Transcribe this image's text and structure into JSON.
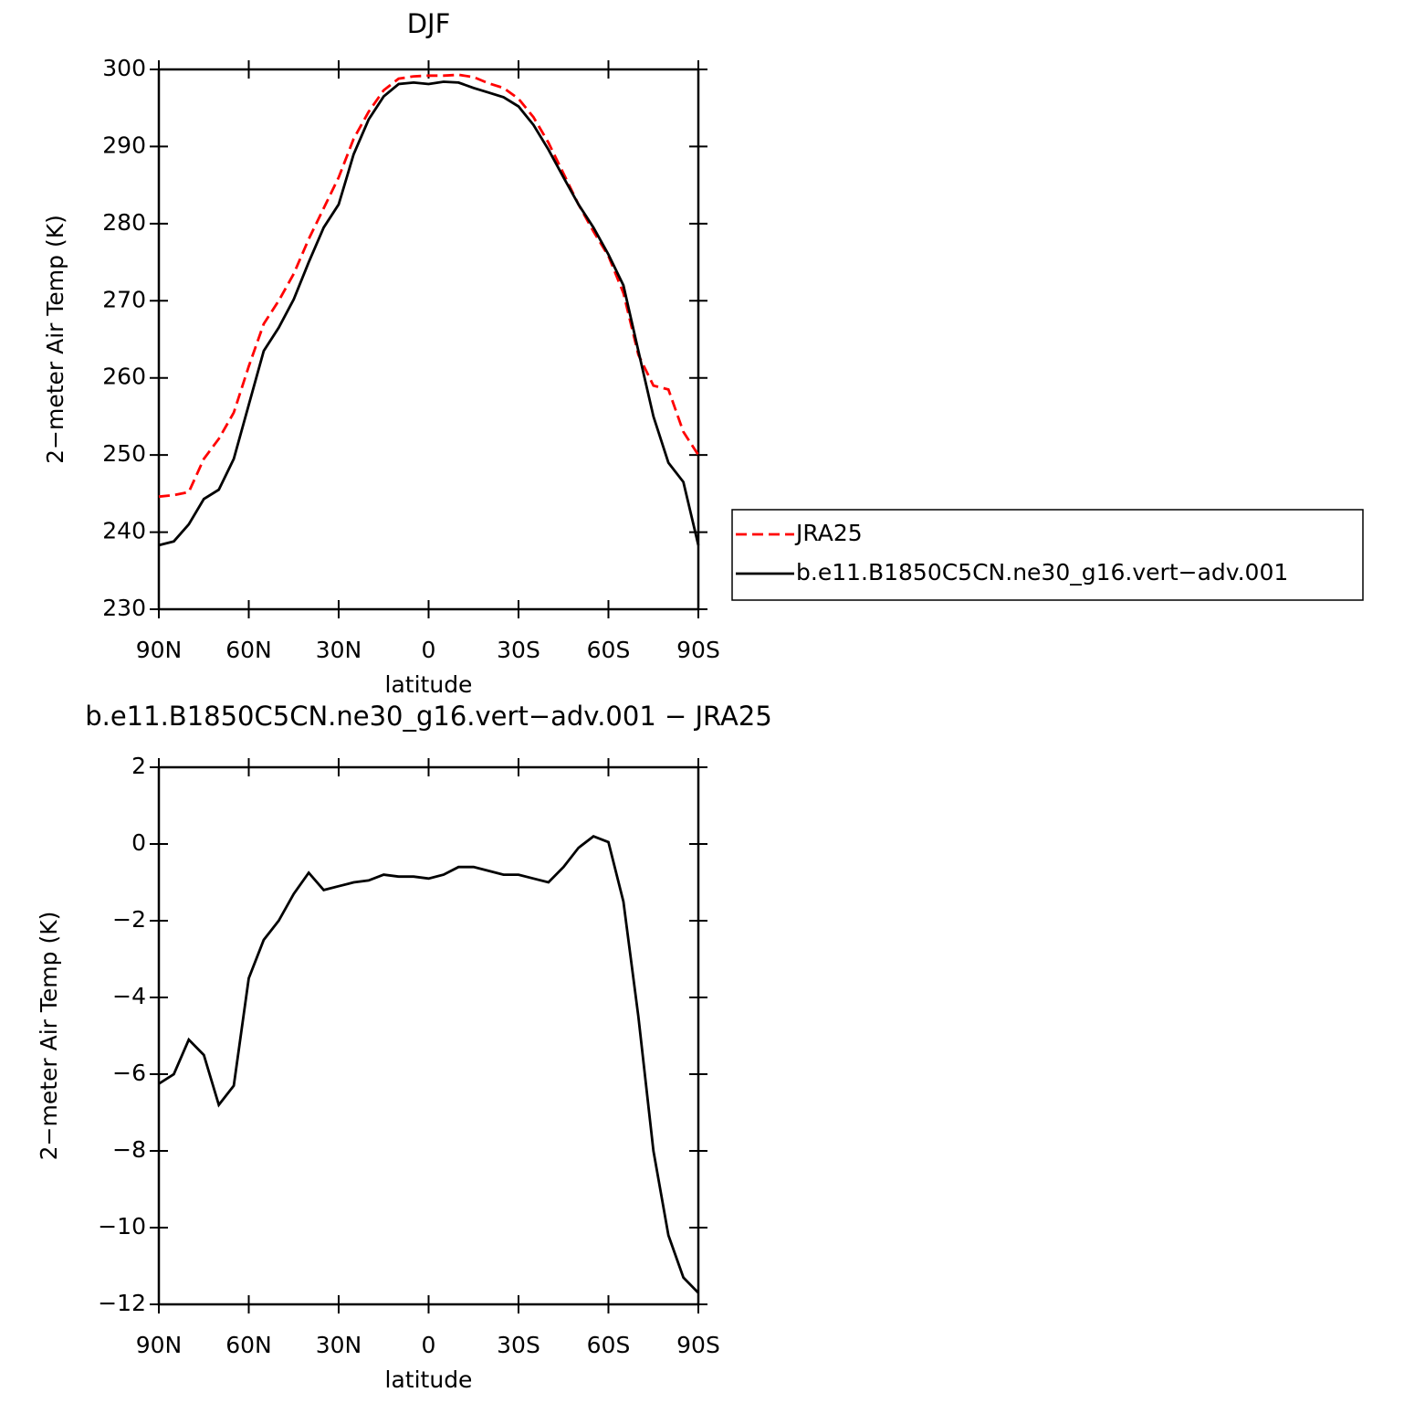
{
  "chart_data": [
    {
      "type": "line",
      "title": "DJF",
      "x_label": "latitude",
      "y_label": "2−meter Air Temp (K)",
      "x": [
        90,
        85,
        80,
        75,
        70,
        65,
        60,
        55,
        50,
        45,
        40,
        35,
        30,
        25,
        20,
        15,
        10,
        5,
        0,
        -5,
        -10,
        -15,
        -20,
        -25,
        -30,
        -35,
        -40,
        -45,
        -50,
        -55,
        -60,
        -65,
        -70,
        -75,
        -80,
        -85,
        -90
      ],
      "xlim": [
        90,
        -90
      ],
      "xticks": [
        {
          "value": 90,
          "label": "90N"
        },
        {
          "value": 60,
          "label": "60N"
        },
        {
          "value": 30,
          "label": "30N"
        },
        0,
        {
          "value": -30,
          "label": "30S"
        },
        {
          "value": -60,
          "label": "60S"
        },
        {
          "value": -90,
          "label": "90S"
        }
      ],
      "ylim": [
        230,
        300
      ],
      "yticks": [
        230,
        240,
        250,
        260,
        270,
        280,
        290,
        300
      ],
      "legend": "right",
      "series": [
        {
          "name": "JRA25",
          "color": "#ff0000",
          "dash": true,
          "values": [
            244.6,
            244.8,
            245.2,
            249.5,
            252.1,
            255.5,
            261.5,
            267,
            270,
            273.5,
            278,
            282,
            286,
            291,
            294.5,
            297.3,
            298.8,
            299.1,
            299.2,
            299.2,
            299.3,
            299,
            298.2,
            297.6,
            296.2,
            293.8,
            290.5,
            286.5,
            282.5,
            279,
            275.8,
            271,
            263,
            259,
            258.5,
            253,
            250
          ]
        },
        {
          "name": "b.e11.B1850C5CN.ne30_g16.vert−adv.001",
          "color": "#000000",
          "dash": false,
          "values": [
            238.3,
            238.8,
            241,
            244.3,
            245.5,
            249.5,
            256.5,
            263.5,
            266.5,
            270.2,
            275,
            279.5,
            282.5,
            289,
            293.5,
            296.5,
            298.1,
            298.3,
            298.1,
            298.4,
            298.3,
            297.6,
            297,
            296.4,
            295.2,
            292.8,
            289.6,
            286,
            282.5,
            279.5,
            276,
            272,
            263.5,
            255,
            249,
            246.5,
            238.3
          ]
        }
      ]
    },
    {
      "type": "line",
      "title": "b.e11.B1850C5CN.ne30_g16.vert−adv.001 − JRA25",
      "x_label": "latitude",
      "y_label": "2−meter Air Temp (K)",
      "x": [
        90,
        85,
        80,
        75,
        70,
        65,
        60,
        55,
        50,
        45,
        40,
        35,
        30,
        25,
        20,
        15,
        10,
        5,
        0,
        -5,
        -10,
        -15,
        -20,
        -25,
        -30,
        -35,
        -40,
        -45,
        -50,
        -55,
        -60,
        -65,
        -70,
        -75,
        -80,
        -85,
        -90
      ],
      "xlim": [
        90,
        -90
      ],
      "xticks": [
        {
          "value": 90,
          "label": "90N"
        },
        {
          "value": 60,
          "label": "60N"
        },
        {
          "value": 30,
          "label": "30N"
        },
        0,
        {
          "value": -30,
          "label": "30S"
        },
        {
          "value": -60,
          "label": "60S"
        },
        {
          "value": -90,
          "label": "90S"
        }
      ],
      "ylim": [
        -12,
        2
      ],
      "yticks": [
        {
          "value": -12,
          "label": "−12"
        },
        {
          "value": -10,
          "label": "−10"
        },
        {
          "value": -8,
          "label": "−8"
        },
        {
          "value": -6,
          "label": "−6"
        },
        {
          "value": -4,
          "label": "−4"
        },
        {
          "value": -2,
          "label": "−2"
        },
        0,
        2
      ],
      "color": "#000000",
      "values": [
        -6.25,
        -6,
        -5.1,
        -5.5,
        -6.8,
        -6.3,
        -3.5,
        -2.5,
        -2,
        -1.3,
        -0.75,
        -1.2,
        -1.1,
        -1,
        -0.95,
        -0.8,
        -0.85,
        -0.85,
        -0.9,
        -0.8,
        -0.6,
        -0.6,
        -0.7,
        -0.8,
        -0.8,
        -0.9,
        -1,
        -0.6,
        -0.1,
        0.2,
        0.05,
        -1.5,
        -4.5,
        -8,
        -10.2,
        -11.3,
        -11.7
      ]
    }
  ]
}
